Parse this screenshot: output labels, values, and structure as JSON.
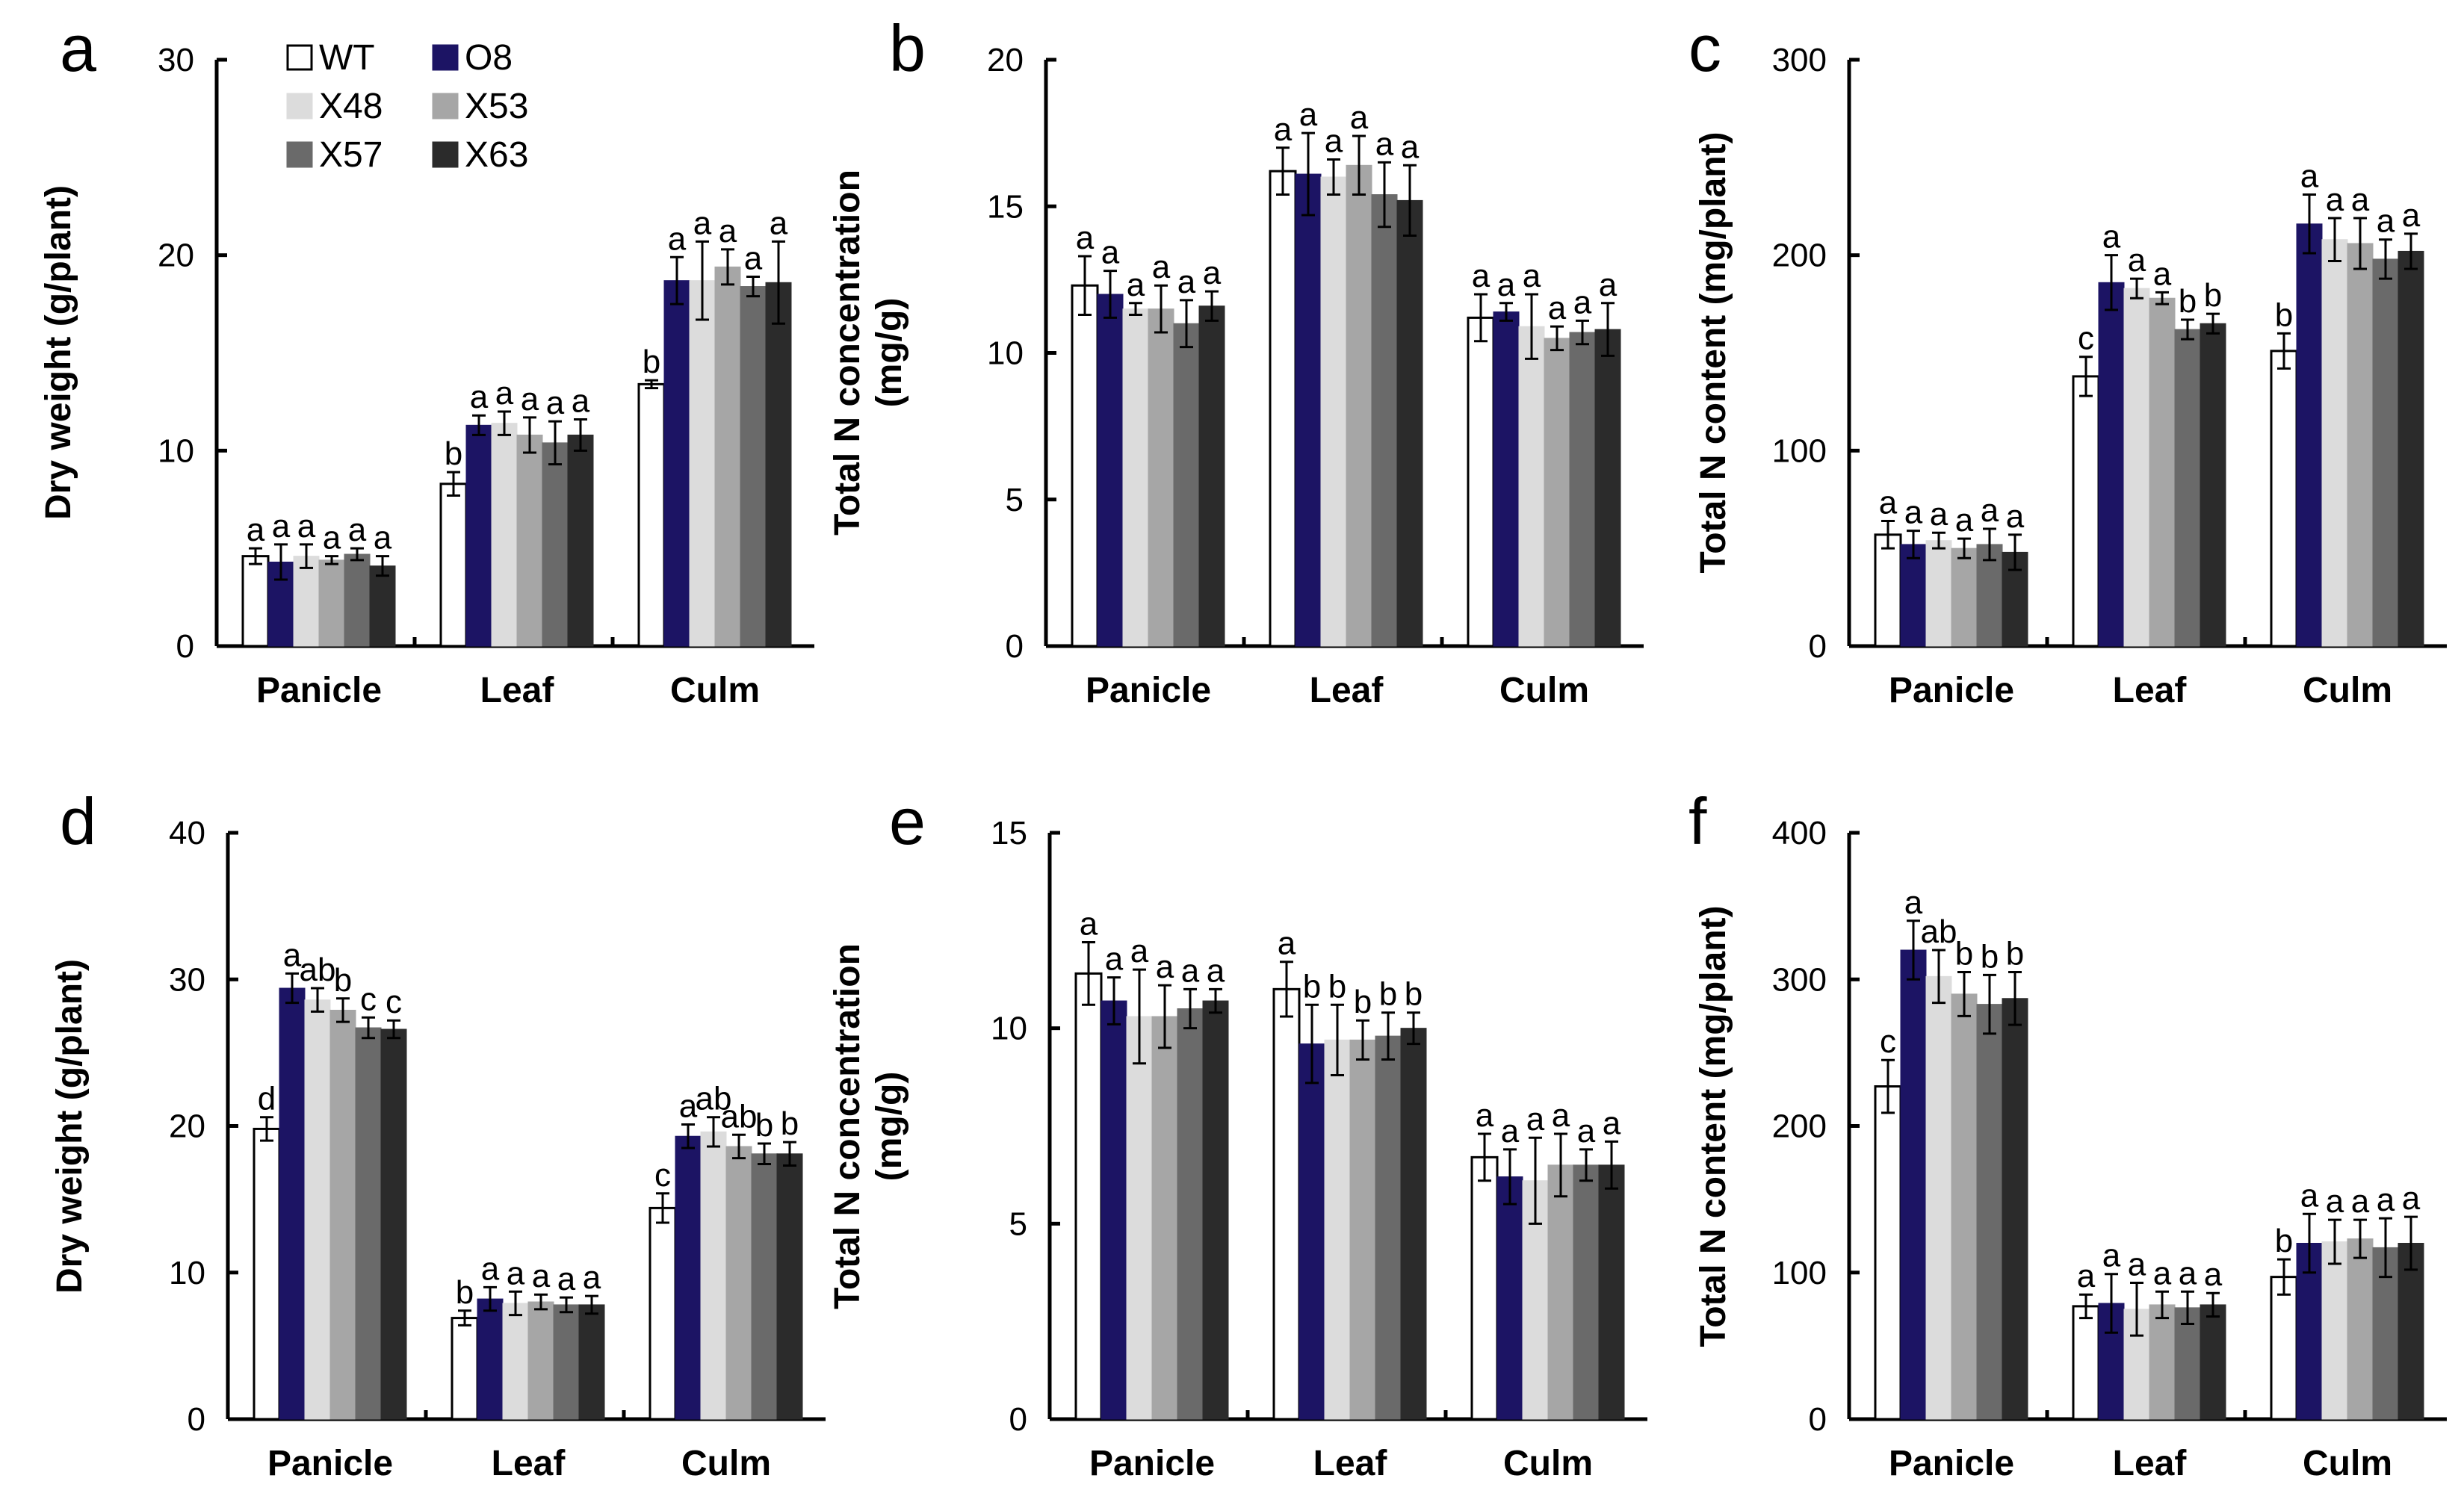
{
  "series_names": [
    "WT",
    "O8",
    "X48",
    "X53",
    "X57",
    "X63"
  ],
  "series_colors": [
    "#ffffff",
    "#1c1464",
    "#dcdcdc",
    "#a6a6a6",
    "#6a6a6a",
    "#2b2b2b"
  ],
  "chart_data": [
    {
      "panel": "a",
      "type": "bar",
      "ylabel": "Dry weight (g/plant)",
      "ylim": [
        0,
        30
      ],
      "yticks": [
        "0",
        "10",
        "20",
        "30"
      ],
      "categories": [
        "Panicle",
        "Leaf",
        "Culm"
      ],
      "series": [
        {
          "name": "WT",
          "values": [
            4.6,
            8.3,
            13.4
          ],
          "errors": [
            0.4,
            0.6,
            0.2
          ],
          "letters": [
            "a",
            "b",
            "b"
          ]
        },
        {
          "name": "O8",
          "values": [
            4.3,
            11.3,
            18.7
          ],
          "errors": [
            0.9,
            0.5,
            1.2
          ],
          "letters": [
            "a",
            "a",
            "a"
          ]
        },
        {
          "name": "X48",
          "values": [
            4.6,
            11.4,
            18.7
          ],
          "errors": [
            0.6,
            0.6,
            2.0
          ],
          "letters": [
            "a",
            "a",
            "a"
          ]
        },
        {
          "name": "X53",
          "values": [
            4.4,
            10.8,
            19.4
          ],
          "errors": [
            0.2,
            0.9,
            0.9
          ],
          "letters": [
            "a",
            "a",
            "a"
          ]
        },
        {
          "name": "X57",
          "values": [
            4.7,
            10.4,
            18.4
          ],
          "errors": [
            0.3,
            1.1,
            0.5
          ],
          "letters": [
            "a",
            "a",
            "a"
          ]
        },
        {
          "name": "X63",
          "values": [
            4.1,
            10.8,
            18.6
          ],
          "errors": [
            0.5,
            0.8,
            2.1
          ],
          "letters": [
            "a",
            "a",
            "a"
          ]
        }
      ]
    },
    {
      "panel": "b",
      "type": "bar",
      "ylabel": [
        "Total N concentration",
        "(mg/g)"
      ],
      "ylim": [
        0,
        20
      ],
      "yticks": [
        "0",
        "5",
        "10",
        "15",
        "20"
      ],
      "categories": [
        "Panicle",
        "Leaf",
        "Culm"
      ],
      "series": [
        {
          "name": "WT",
          "values": [
            12.3,
            16.2,
            11.2
          ],
          "errors": [
            1.0,
            0.8,
            0.8
          ],
          "letters": [
            "a",
            "a",
            "a"
          ]
        },
        {
          "name": "O8",
          "values": [
            12.0,
            16.1,
            11.4
          ],
          "errors": [
            0.8,
            1.4,
            0.3
          ],
          "letters": [
            "a",
            "a",
            "a"
          ]
        },
        {
          "name": "X48",
          "values": [
            11.5,
            16.0,
            10.9
          ],
          "errors": [
            0.2,
            0.6,
            1.1
          ],
          "letters": [
            "a",
            "a",
            "a"
          ]
        },
        {
          "name": "X53",
          "values": [
            11.5,
            16.4,
            10.5
          ],
          "errors": [
            0.8,
            1.0,
            0.4
          ],
          "letters": [
            "a",
            "a",
            "a"
          ]
        },
        {
          "name": "X57",
          "values": [
            11.0,
            15.4,
            10.7
          ],
          "errors": [
            0.8,
            1.1,
            0.4
          ],
          "letters": [
            "a",
            "a",
            "a"
          ]
        },
        {
          "name": "X63",
          "values": [
            11.6,
            15.2,
            10.8
          ],
          "errors": [
            0.5,
            1.2,
            0.9
          ],
          "letters": [
            "a",
            "a",
            "a"
          ]
        }
      ]
    },
    {
      "panel": "c",
      "type": "bar",
      "ylabel": "Total N content (mg/plant)",
      "ylim": [
        0,
        300
      ],
      "yticks": [
        "0",
        "100",
        "200",
        "300"
      ],
      "categories": [
        "Panicle",
        "Leaf",
        "Culm"
      ],
      "series": [
        {
          "name": "WT",
          "values": [
            57,
            138,
            151
          ],
          "errors": [
            7,
            10,
            9
          ],
          "letters": [
            "a",
            "c",
            "b"
          ]
        },
        {
          "name": "O8",
          "values": [
            52,
            186,
            216
          ],
          "errors": [
            7,
            14,
            15
          ],
          "letters": [
            "a",
            "a",
            "a"
          ]
        },
        {
          "name": "X48",
          "values": [
            54,
            183,
            208
          ],
          "errors": [
            4,
            5,
            11
          ],
          "letters": [
            "a",
            "a",
            "a"
          ]
        },
        {
          "name": "X53",
          "values": [
            50,
            178,
            206
          ],
          "errors": [
            5,
            3,
            13
          ],
          "letters": [
            "a",
            "a",
            "a"
          ]
        },
        {
          "name": "X57",
          "values": [
            52,
            162,
            198
          ],
          "errors": [
            8,
            5,
            10
          ],
          "letters": [
            "a",
            "b",
            "a"
          ]
        },
        {
          "name": "X63",
          "values": [
            48,
            165,
            202
          ],
          "errors": [
            9,
            5,
            9
          ],
          "letters": [
            "a",
            "b",
            "a"
          ]
        }
      ]
    },
    {
      "panel": "d",
      "type": "bar",
      "ylabel": "Dry weight (g/plant)",
      "ylim": [
        0,
        40
      ],
      "yticks": [
        "0",
        "10",
        "20",
        "30",
        "40"
      ],
      "categories": [
        "Panicle",
        "Leaf",
        "Culm"
      ],
      "series": [
        {
          "name": "WT",
          "values": [
            19.8,
            6.9,
            14.4
          ],
          "errors": [
            0.8,
            0.5,
            1.0
          ],
          "letters": [
            "d",
            "b",
            "c"
          ]
        },
        {
          "name": "O8",
          "values": [
            29.4,
            8.2,
            19.3
          ],
          "errors": [
            1.0,
            0.8,
            0.8
          ],
          "letters": [
            "a",
            "a",
            "a"
          ]
        },
        {
          "name": "X48",
          "values": [
            28.6,
            7.9,
            19.6
          ],
          "errors": [
            0.8,
            0.8,
            1.0
          ],
          "letters": [
            "ab",
            "a",
            "ab"
          ]
        },
        {
          "name": "X53",
          "values": [
            27.9,
            8.0,
            18.6
          ],
          "errors": [
            0.8,
            0.5,
            0.8
          ],
          "letters": [
            "b",
            "a",
            "ab"
          ]
        },
        {
          "name": "X57",
          "values": [
            26.7,
            7.8,
            18.1
          ],
          "errors": [
            0.7,
            0.5,
            0.7
          ],
          "letters": [
            "c",
            "a",
            "b"
          ]
        },
        {
          "name": "X63",
          "values": [
            26.6,
            7.8,
            18.1
          ],
          "errors": [
            0.6,
            0.6,
            0.8
          ],
          "letters": [
            "c",
            "a",
            "b"
          ]
        }
      ]
    },
    {
      "panel": "e",
      "type": "bar",
      "ylabel": [
        "Total N concentration",
        "(mg/g)"
      ],
      "ylim": [
        0,
        15
      ],
      "yticks": [
        "0",
        "5",
        "10",
        "15"
      ],
      "categories": [
        "Panicle",
        "Leaf",
        "Culm"
      ],
      "series": [
        {
          "name": "WT",
          "values": [
            11.4,
            11.0,
            6.7
          ],
          "errors": [
            0.8,
            0.7,
            0.6
          ],
          "letters": [
            "a",
            "a",
            "a"
          ]
        },
        {
          "name": "O8",
          "values": [
            10.7,
            9.6,
            6.2
          ],
          "errors": [
            0.6,
            1.0,
            0.7
          ],
          "letters": [
            "a",
            "b",
            "a"
          ]
        },
        {
          "name": "X48",
          "values": [
            10.3,
            9.7,
            6.1
          ],
          "errors": [
            1.2,
            0.9,
            1.1
          ],
          "letters": [
            "a",
            "b",
            "a"
          ]
        },
        {
          "name": "X53",
          "values": [
            10.3,
            9.7,
            6.5
          ],
          "errors": [
            0.8,
            0.5,
            0.8
          ],
          "letters": [
            "a",
            "b",
            "a"
          ]
        },
        {
          "name": "X57",
          "values": [
            10.5,
            9.8,
            6.5
          ],
          "errors": [
            0.5,
            0.6,
            0.4
          ],
          "letters": [
            "a",
            "b",
            "a"
          ]
        },
        {
          "name": "X63",
          "values": [
            10.7,
            10.0,
            6.5
          ],
          "errors": [
            0.3,
            0.4,
            0.6
          ],
          "letters": [
            "a",
            "b",
            "a"
          ]
        }
      ]
    },
    {
      "panel": "f",
      "type": "bar",
      "ylabel": "Total N content (mg/plant)",
      "ylim": [
        0,
        400
      ],
      "yticks": [
        "0",
        "100",
        "200",
        "300",
        "400"
      ],
      "categories": [
        "Panicle",
        "Leaf",
        "Culm"
      ],
      "series": [
        {
          "name": "WT",
          "values": [
            227,
            77,
            97
          ],
          "errors": [
            18,
            8,
            12
          ],
          "letters": [
            "c",
            "a",
            "b"
          ]
        },
        {
          "name": "O8",
          "values": [
            320,
            79,
            120
          ],
          "errors": [
            20,
            20,
            20
          ],
          "letters": [
            "a",
            "a",
            "a"
          ]
        },
        {
          "name": "X48",
          "values": [
            302,
            75,
            121
          ],
          "errors": [
            18,
            18,
            15
          ],
          "letters": [
            "ab",
            "a",
            "a"
          ]
        },
        {
          "name": "X53",
          "values": [
            290,
            78,
            123
          ],
          "errors": [
            15,
            9,
            13
          ],
          "letters": [
            "b",
            "a",
            "a"
          ]
        },
        {
          "name": "X57",
          "values": [
            283,
            76,
            117
          ],
          "errors": [
            20,
            11,
            20
          ],
          "letters": [
            "b",
            "a",
            "a"
          ]
        },
        {
          "name": "X63",
          "values": [
            287,
            78,
            120
          ],
          "errors": [
            18,
            8,
            18
          ],
          "letters": [
            "b",
            "a",
            "a"
          ]
        }
      ]
    }
  ]
}
